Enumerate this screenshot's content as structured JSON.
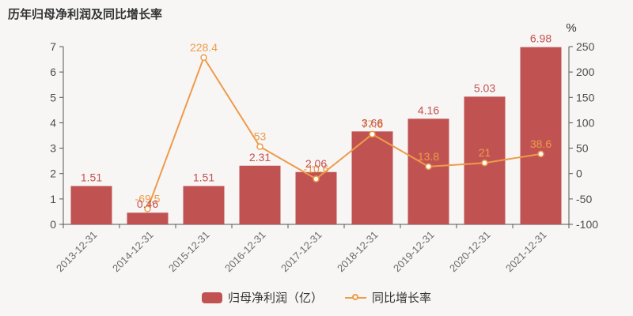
{
  "title": "历年归母净利润及同比增长率",
  "colors": {
    "background": "#f7f6f5",
    "bar": "#c05352",
    "bar_label": "#c4504e",
    "line": "#ee9b4a",
    "marker_fill": "#ffffff",
    "axis_line": "#555555",
    "axis_tick_label": "#4d4d4d",
    "x_tick_label": "#6b6b6b",
    "title_text": "#333333"
  },
  "legend": {
    "items": [
      {
        "label": "归母净利润（亿）",
        "marker": "bar-swatch",
        "series": "bar"
      },
      {
        "label": "同比增长率",
        "marker": "line-dot-swatch",
        "series": "line"
      }
    ]
  },
  "chart_data": {
    "type": "bar+line",
    "title": "历年归母净利润及同比增长率",
    "categories": [
      "2013-12-31",
      "2014-12-31",
      "2015-12-31",
      "2016-12-31",
      "2017-12-31",
      "2018-12-31",
      "2019-12-31",
      "2020-12-31",
      "2021-12-31"
    ],
    "series": [
      {
        "name": "归母净利润（亿）",
        "type": "bar",
        "y_axis": "left",
        "values": [
          1.51,
          0.46,
          1.51,
          2.31,
          2.06,
          3.66,
          4.16,
          5.03,
          6.98
        ],
        "labels": [
          "1.51",
          "0.46",
          "1.51",
          "2.31",
          "2.06",
          "3.66",
          "4.16",
          "5.03",
          "6.98"
        ]
      },
      {
        "name": "同比增长率",
        "type": "line",
        "y_axis": "right",
        "values": [
          null,
          -69.5,
          228.4,
          53,
          -10.6,
          77.6,
          13.8,
          21,
          38.6
        ],
        "labels": [
          null,
          "-69.5",
          "228.4",
          "53",
          "-10.6",
          "77.6",
          "13.8",
          "21",
          "38.6"
        ]
      }
    ],
    "left_axis": {
      "min": 0,
      "max": 7,
      "ticks": [
        0,
        1,
        2,
        3,
        4,
        5,
        6,
        7
      ]
    },
    "right_axis": {
      "min": -100,
      "max": 250,
      "ticks": [
        -100,
        -50,
        0,
        50,
        100,
        150,
        200,
        250
      ],
      "unit": "%"
    },
    "grid": false,
    "legend_position": "bottom",
    "x_label_rotation": -45
  }
}
